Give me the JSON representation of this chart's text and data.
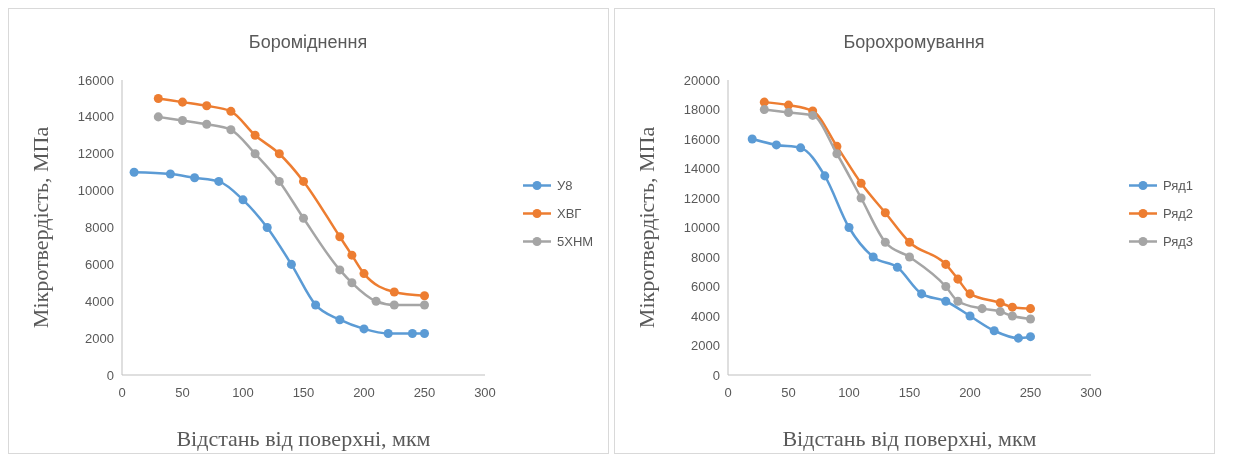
{
  "chart_data": [
    {
      "type": "line",
      "title": "Бороміднення",
      "xlabel": "Відстань від поверхні, мкм",
      "ylabel": "Мікротвердість, МПа",
      "xlim": [
        0,
        300
      ],
      "xticks": [
        0,
        50,
        100,
        150,
        200,
        250,
        300
      ],
      "ylim": [
        0,
        16000
      ],
      "yticks": [
        0,
        2000,
        4000,
        6000,
        8000,
        10000,
        12000,
        14000,
        16000
      ],
      "grid": false,
      "legend": "right",
      "marker": "circle",
      "series": [
        {
          "name": "У8",
          "color": "#5b9bd5",
          "x": [
            10,
            40,
            60,
            80,
            100,
            120,
            140,
            160,
            180,
            200,
            220,
            240,
            250
          ],
          "values": [
            11000,
            10900,
            10700,
            10500,
            9500,
            8000,
            6000,
            3800,
            3000,
            2500,
            2250,
            2250,
            2250
          ]
        },
        {
          "name": "ХВГ",
          "color": "#ed7d31",
          "x": [
            30,
            50,
            70,
            90,
            110,
            130,
            150,
            180,
            190,
            200,
            225,
            250
          ],
          "values": [
            15000,
            14800,
            14600,
            14300,
            13000,
            12000,
            10500,
            7500,
            6500,
            5500,
            4500,
            4300
          ]
        },
        {
          "name": "5ХНМ",
          "color": "#a5a5a5",
          "x": [
            30,
            50,
            70,
            90,
            110,
            130,
            150,
            180,
            190,
            210,
            225,
            250
          ],
          "values": [
            14000,
            13800,
            13600,
            13300,
            12000,
            10500,
            8500,
            5700,
            5000,
            4000,
            3800,
            3800
          ]
        }
      ]
    },
    {
      "type": "line",
      "title": "Борохромування",
      "xlabel": "Відстань від поверхні, мкм",
      "ylabel": "Мікротвердість, МПа",
      "xlim": [
        0,
        300
      ],
      "xticks": [
        0,
        50,
        100,
        150,
        200,
        250,
        300
      ],
      "ylim": [
        0,
        20000
      ],
      "yticks": [
        0,
        2000,
        4000,
        6000,
        8000,
        10000,
        12000,
        14000,
        16000,
        18000,
        20000
      ],
      "grid": false,
      "legend": "right",
      "marker": "circle",
      "series": [
        {
          "name": "Ряд1",
          "color": "#5b9bd5",
          "x": [
            20,
            40,
            60,
            80,
            100,
            120,
            140,
            160,
            180,
            200,
            220,
            240,
            250
          ],
          "values": [
            16000,
            15600,
            15400,
            13500,
            10000,
            8000,
            7300,
            5500,
            5000,
            4000,
            3000,
            2500,
            2600
          ]
        },
        {
          "name": "Ряд2",
          "color": "#ed7d31",
          "x": [
            30,
            50,
            70,
            90,
            110,
            130,
            150,
            180,
            190,
            200,
            225,
            235,
            250
          ],
          "values": [
            18500,
            18300,
            17900,
            15500,
            13000,
            11000,
            9000,
            7500,
            6500,
            5500,
            4900,
            4600,
            4500
          ]
        },
        {
          "name": "Ряд3",
          "color": "#a5a5a5",
          "x": [
            30,
            50,
            70,
            90,
            110,
            130,
            150,
            180,
            190,
            210,
            225,
            235,
            250
          ],
          "values": [
            18000,
            17800,
            17600,
            15000,
            12000,
            9000,
            8000,
            6000,
            5000,
            4500,
            4300,
            4000,
            3800
          ]
        }
      ]
    }
  ]
}
